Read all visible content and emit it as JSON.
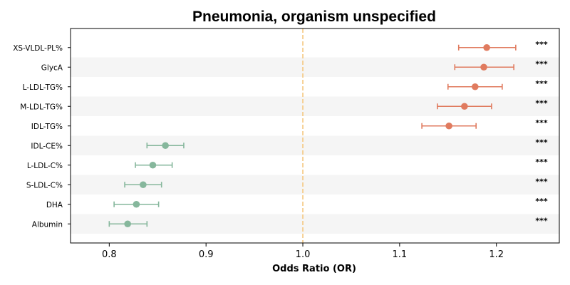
{
  "chart_data": {
    "type": "scatter",
    "subtype": "forest-plot",
    "title": "Pneumonia, organism unspecified",
    "xlabel": "Odds Ratio (OR)",
    "ylabel": "",
    "xlim": [
      0.76,
      1.265
    ],
    "xticks": [
      0.8,
      0.9,
      1.0,
      1.1,
      1.2
    ],
    "xtick_labels": [
      "0.8",
      "0.9",
      "1.0",
      "1.1",
      "1.2"
    ],
    "reference_line": {
      "x": 1.0,
      "style": "dashed",
      "color": "#f5c77e"
    },
    "alternating_row_shading": true,
    "colors": {
      "increased": "#e07b5f",
      "decreased": "#86b79c",
      "row_shade": "#f5f5f5"
    },
    "categories": [
      "XS-VLDL-PL%",
      "GlycA",
      "L-LDL-TG%",
      "M-LDL-TG%",
      "IDL-TG%",
      "IDL-CE%",
      "L-LDL-C%",
      "S-LDL-C%",
      "DHA",
      "Albumin"
    ],
    "series": [
      {
        "points": [
          {
            "label": "XS-VLDL-PL%",
            "or": 1.19,
            "lower": 1.161,
            "upper": 1.22,
            "significance": "***",
            "direction": "increased"
          },
          {
            "label": "GlycA",
            "or": 1.187,
            "lower": 1.157,
            "upper": 1.218,
            "significance": "***",
            "direction": "increased"
          },
          {
            "label": "L-LDL-TG%",
            "or": 1.178,
            "lower": 1.15,
            "upper": 1.206,
            "significance": "***",
            "direction": "increased"
          },
          {
            "label": "M-LDL-TG%",
            "or": 1.167,
            "lower": 1.139,
            "upper": 1.195,
            "significance": "***",
            "direction": "increased"
          },
          {
            "label": "IDL-TG%",
            "or": 1.151,
            "lower": 1.123,
            "upper": 1.179,
            "significance": "***",
            "direction": "increased"
          },
          {
            "label": "IDL-CE%",
            "or": 0.858,
            "lower": 0.839,
            "upper": 0.877,
            "significance": "***",
            "direction": "decreased"
          },
          {
            "label": "L-LDL-C%",
            "or": 0.845,
            "lower": 0.827,
            "upper": 0.865,
            "significance": "***",
            "direction": "decreased"
          },
          {
            "label": "S-LDL-C%",
            "or": 0.835,
            "lower": 0.816,
            "upper": 0.854,
            "significance": "***",
            "direction": "decreased"
          },
          {
            "label": "DHA",
            "or": 0.828,
            "lower": 0.805,
            "upper": 0.851,
            "significance": "***",
            "direction": "decreased"
          },
          {
            "label": "Albumin",
            "or": 0.819,
            "lower": 0.8,
            "upper": 0.839,
            "significance": "***",
            "direction": "decreased"
          }
        ]
      }
    ]
  }
}
